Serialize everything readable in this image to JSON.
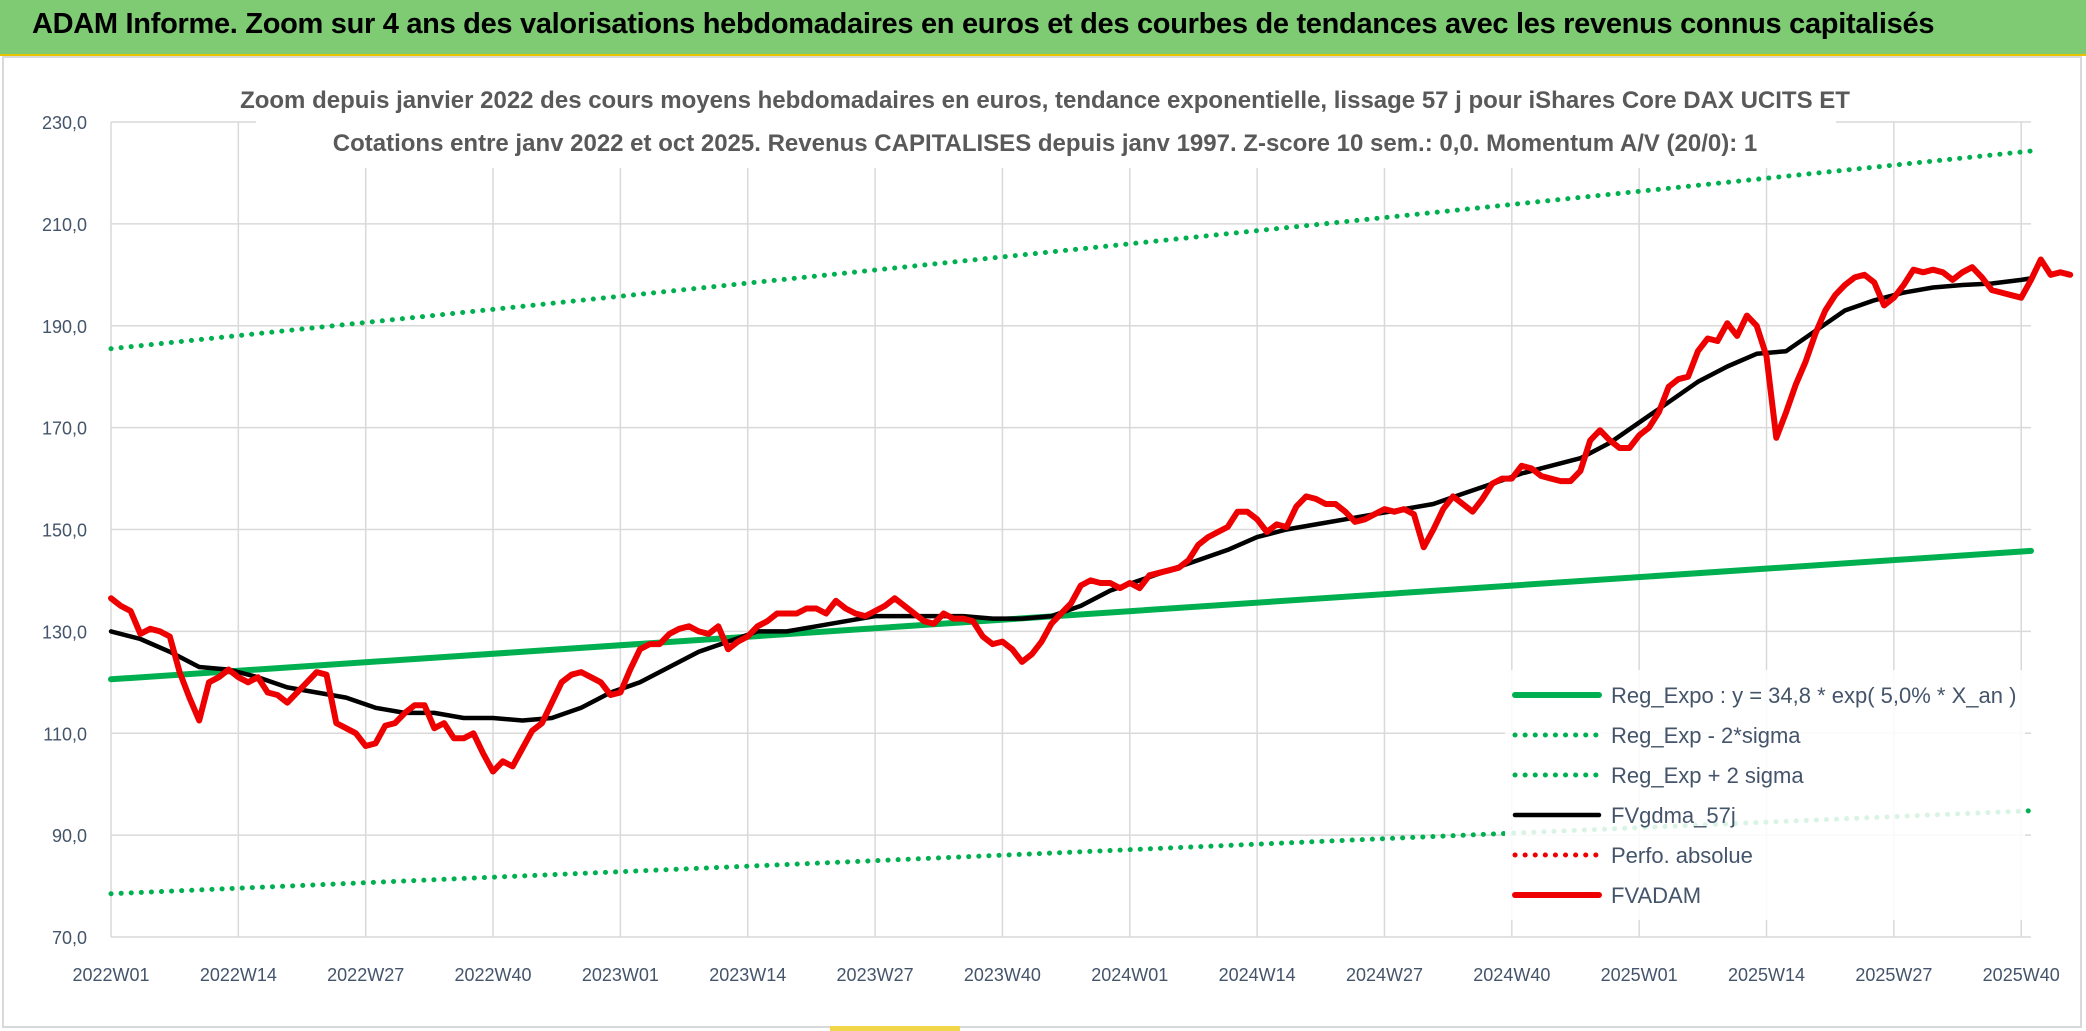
{
  "header": {
    "title": "ADAM Informe. Zoom sur 4 ans des valorisations hebdomadaires en euros et des courbes de tendances avec les revenus connus capitalisés"
  },
  "colors": {
    "header_bg": "#7ecb73",
    "reg_green": "#00b050",
    "red": "#ee0000",
    "black": "#000000",
    "grid": "#d9d9d9",
    "axis_text": "#44546a"
  },
  "chart_data": {
    "type": "line",
    "title_line1": "Zoom depuis janvier 2022 des cours moyens hebdomadaires en euros, tendance exponentielle, lissage 57 j pour iShares Core DAX UCITS ET",
    "title_line2": "Cotations entre janv 2022 et oct 2025. Revenus CAPITALISES depuis janv 1997. Z-score 10 sem.: 0,0. Momentum A/V (20/0): 1",
    "xlabel": "",
    "ylabel": "",
    "ylim": [
      70,
      230
    ],
    "y_ticks": [
      "70,0",
      "90,0",
      "110,0",
      "130,0",
      "150,0",
      "170,0",
      "190,0",
      "210,0",
      "230,0"
    ],
    "x_range_weeks": [
      0,
      196
    ],
    "x_ticks": [
      {
        "w": 0,
        "label": "2022W01"
      },
      {
        "w": 13,
        "label": "2022W14"
      },
      {
        "w": 26,
        "label": "2022W27"
      },
      {
        "w": 39,
        "label": "2022W40"
      },
      {
        "w": 52,
        "label": "2023W01"
      },
      {
        "w": 65,
        "label": "2023W14"
      },
      {
        "w": 78,
        "label": "2023W27"
      },
      {
        "w": 91,
        "label": "2023W40"
      },
      {
        "w": 104,
        "label": "2024W01"
      },
      {
        "w": 117,
        "label": "2024W14"
      },
      {
        "w": 130,
        "label": "2024W27"
      },
      {
        "w": 143,
        "label": "2024W40"
      },
      {
        "w": 156,
        "label": "2025W01"
      },
      {
        "w": 169,
        "label": "2025W14"
      },
      {
        "w": 182,
        "label": "2025W27"
      },
      {
        "w": 195,
        "label": "2025W40"
      }
    ],
    "legend_position": "bottom-right",
    "series": [
      {
        "name": "Reg_Expo : y = 34,8 * exp( 5,0% *  X_an )",
        "style": "solid-thick",
        "color": "#00b050",
        "points": [
          [
            0,
            120.6
          ],
          [
            196,
            145.8
          ]
        ]
      },
      {
        "name": "Reg_Exp - 2*sigma",
        "style": "dotted",
        "color": "#00b050",
        "points": [
          [
            0,
            78.5
          ],
          [
            196,
            94.8
          ]
        ]
      },
      {
        "name": "Reg_Exp + 2 sigma",
        "style": "dotted",
        "color": "#00b050",
        "points": [
          [
            0,
            185.5
          ],
          [
            196,
            224.3
          ]
        ]
      },
      {
        "name": "FVgdma_57j",
        "style": "solid",
        "color": "#000000",
        "points": [
          [
            0,
            130
          ],
          [
            3,
            128.5
          ],
          [
            6,
            126
          ],
          [
            9,
            123
          ],
          [
            12,
            122.5
          ],
          [
            15,
            121
          ],
          [
            18,
            119
          ],
          [
            21,
            118
          ],
          [
            24,
            117
          ],
          [
            27,
            115
          ],
          [
            30,
            114
          ],
          [
            33,
            114
          ],
          [
            36,
            113
          ],
          [
            39,
            113
          ],
          [
            42,
            112.5
          ],
          [
            45,
            113
          ],
          [
            48,
            115
          ],
          [
            51,
            118
          ],
          [
            54,
            120
          ],
          [
            57,
            123
          ],
          [
            60,
            126
          ],
          [
            63,
            128
          ],
          [
            66,
            130
          ],
          [
            69,
            130
          ],
          [
            72,
            131
          ],
          [
            75,
            132
          ],
          [
            78,
            133
          ],
          [
            81,
            133
          ],
          [
            84,
            133
          ],
          [
            87,
            133
          ],
          [
            90,
            132.5
          ],
          [
            93,
            132.5
          ],
          [
            96,
            133
          ],
          [
            99,
            135
          ],
          [
            102,
            138
          ],
          [
            105,
            140
          ],
          [
            108,
            142
          ],
          [
            111,
            144
          ],
          [
            114,
            146
          ],
          [
            117,
            148.5
          ],
          [
            120,
            150
          ],
          [
            123,
            151
          ],
          [
            126,
            152
          ],
          [
            129,
            153
          ],
          [
            132,
            154
          ],
          [
            135,
            155
          ],
          [
            138,
            157
          ],
          [
            141,
            159
          ],
          [
            144,
            161
          ],
          [
            147,
            162.5
          ],
          [
            150,
            164
          ],
          [
            153,
            167
          ],
          [
            156,
            171
          ],
          [
            159,
            175
          ],
          [
            162,
            179
          ],
          [
            165,
            182
          ],
          [
            168,
            184.5
          ],
          [
            171,
            185
          ],
          [
            174,
            189
          ],
          [
            177,
            193
          ],
          [
            180,
            195
          ],
          [
            183,
            196.5
          ],
          [
            186,
            197.5
          ],
          [
            189,
            198
          ],
          [
            192,
            198.3
          ],
          [
            195,
            199
          ],
          [
            196,
            199.3
          ]
        ]
      },
      {
        "name": "Perfo. absolue",
        "style": "dotted",
        "color": "#ee0000",
        "points": []
      },
      {
        "name": "FVADAM",
        "style": "solid-thick",
        "color": "#ee0000",
        "points": [
          [
            0,
            136.5
          ],
          [
            1,
            135
          ],
          [
            2,
            134
          ],
          [
            3,
            129.5
          ],
          [
            4,
            130.5
          ],
          [
            5,
            130
          ],
          [
            6,
            129
          ],
          [
            7,
            122
          ],
          [
            8,
            117
          ],
          [
            9,
            112.5
          ],
          [
            10,
            120
          ],
          [
            11,
            121
          ],
          [
            12,
            122.5
          ],
          [
            13,
            121
          ],
          [
            14,
            120
          ],
          [
            15,
            121
          ],
          [
            16,
            118
          ],
          [
            17,
            117.5
          ],
          [
            18,
            116
          ],
          [
            19,
            118
          ],
          [
            20,
            120
          ],
          [
            21,
            122
          ],
          [
            22,
            121.5
          ],
          [
            23,
            112
          ],
          [
            24,
            111
          ],
          [
            25,
            110
          ],
          [
            26,
            107.5
          ],
          [
            27,
            108
          ],
          [
            28,
            111.5
          ],
          [
            29,
            112
          ],
          [
            30,
            114
          ],
          [
            31,
            115.5
          ],
          [
            32,
            115.5
          ],
          [
            33,
            111
          ],
          [
            34,
            112
          ],
          [
            35,
            109
          ],
          [
            36,
            109
          ],
          [
            37,
            110
          ],
          [
            38,
            106
          ],
          [
            39,
            102.5
          ],
          [
            40,
            104.5
          ],
          [
            41,
            103.5
          ],
          [
            42,
            107
          ],
          [
            43,
            110.5
          ],
          [
            44,
            112
          ],
          [
            45,
            116
          ],
          [
            46,
            120
          ],
          [
            47,
            121.5
          ],
          [
            48,
            122
          ],
          [
            49,
            121
          ],
          [
            50,
            120
          ],
          [
            51,
            117.5
          ],
          [
            52,
            118
          ],
          [
            53,
            122.5
          ],
          [
            54,
            126.5
          ],
          [
            55,
            127.5
          ],
          [
            56,
            127.5
          ],
          [
            57,
            129.5
          ],
          [
            58,
            130.5
          ],
          [
            59,
            131
          ],
          [
            60,
            130
          ],
          [
            61,
            129.5
          ],
          [
            62,
            131
          ],
          [
            63,
            126.5
          ],
          [
            64,
            128
          ],
          [
            65,
            129
          ],
          [
            66,
            131
          ],
          [
            67,
            132
          ],
          [
            68,
            133.5
          ],
          [
            69,
            133.5
          ],
          [
            70,
            133.5
          ],
          [
            71,
            134.5
          ],
          [
            72,
            134.5
          ],
          [
            73,
            133.5
          ],
          [
            74,
            136
          ],
          [
            75,
            134.5
          ],
          [
            76,
            133.5
          ],
          [
            77,
            133
          ],
          [
            78,
            134
          ],
          [
            79,
            135
          ],
          [
            80,
            136.5
          ],
          [
            81,
            135
          ],
          [
            82,
            133.5
          ],
          [
            83,
            132
          ],
          [
            84,
            131.5
          ],
          [
            85,
            133.5
          ],
          [
            86,
            132.5
          ],
          [
            87,
            132.5
          ],
          [
            88,
            132
          ],
          [
            89,
            129
          ],
          [
            90,
            127.5
          ],
          [
            91,
            128
          ],
          [
            92,
            126.5
          ],
          [
            93,
            124
          ],
          [
            94,
            125.5
          ],
          [
            95,
            128
          ],
          [
            96,
            131.5
          ],
          [
            97,
            133.5
          ],
          [
            98,
            135.5
          ],
          [
            99,
            139
          ],
          [
            100,
            140
          ],
          [
            101,
            139.5
          ],
          [
            102,
            139.5
          ],
          [
            103,
            138.5
          ],
          [
            104,
            139.5
          ],
          [
            105,
            138.5
          ],
          [
            106,
            141
          ],
          [
            107,
            141.5
          ],
          [
            108,
            142
          ],
          [
            109,
            142.5
          ],
          [
            110,
            144
          ],
          [
            111,
            147
          ],
          [
            112,
            148.5
          ],
          [
            113,
            149.5
          ],
          [
            114,
            150.5
          ],
          [
            115,
            153.5
          ],
          [
            116,
            153.5
          ],
          [
            117,
            152
          ],
          [
            118,
            149.5
          ],
          [
            119,
            151
          ],
          [
            120,
            150.5
          ],
          [
            121,
            154.5
          ],
          [
            122,
            156.5
          ],
          [
            123,
            156
          ],
          [
            124,
            155
          ],
          [
            125,
            155
          ],
          [
            126,
            153.5
          ],
          [
            127,
            151.5
          ],
          [
            128,
            152
          ],
          [
            129,
            153
          ],
          [
            130,
            154
          ],
          [
            131,
            153.5
          ],
          [
            132,
            154
          ],
          [
            133,
            153
          ],
          [
            134,
            146.5
          ],
          [
            135,
            150
          ],
          [
            136,
            154
          ],
          [
            137,
            156.5
          ],
          [
            138,
            155
          ],
          [
            139,
            153.5
          ],
          [
            140,
            156
          ],
          [
            141,
            159
          ],
          [
            142,
            160
          ],
          [
            143,
            160
          ],
          [
            144,
            162.5
          ],
          [
            145,
            162
          ],
          [
            146,
            160.5
          ],
          [
            147,
            160
          ],
          [
            148,
            159.5
          ],
          [
            149,
            159.5
          ],
          [
            150,
            161.5
          ],
          [
            151,
            167.5
          ],
          [
            152,
            169.5
          ],
          [
            153,
            167.5
          ],
          [
            154,
            166
          ],
          [
            155,
            166
          ],
          [
            156,
            168.5
          ],
          [
            157,
            170
          ],
          [
            158,
            173
          ],
          [
            159,
            178
          ],
          [
            160,
            179.5
          ],
          [
            161,
            180
          ],
          [
            162,
            185
          ],
          [
            163,
            187.5
          ],
          [
            164,
            187
          ],
          [
            165,
            190.5
          ],
          [
            166,
            188
          ],
          [
            167,
            192
          ],
          [
            168,
            190
          ],
          [
            169,
            184
          ],
          [
            170,
            168
          ],
          [
            171,
            173
          ],
          [
            172,
            178.5
          ],
          [
            173,
            183
          ],
          [
            174,
            188.5
          ],
          [
            175,
            193
          ],
          [
            176,
            196
          ],
          [
            177,
            198
          ],
          [
            178,
            199.5
          ],
          [
            179,
            200
          ],
          [
            180,
            198.5
          ],
          [
            181,
            194
          ],
          [
            182,
            195.5
          ],
          [
            183,
            198
          ],
          [
            184,
            201
          ],
          [
            185,
            200.5
          ],
          [
            186,
            201
          ],
          [
            187,
            200.5
          ],
          [
            188,
            199
          ],
          [
            189,
            200.5
          ],
          [
            190,
            201.5
          ],
          [
            191,
            199.5
          ],
          [
            192,
            197
          ],
          [
            193,
            196.5
          ],
          [
            194,
            196
          ],
          [
            195,
            195.5
          ],
          [
            196,
            199
          ],
          [
            197,
            203
          ],
          [
            198,
            200
          ],
          [
            199,
            200.5
          ],
          [
            200,
            200
          ]
        ]
      }
    ]
  }
}
